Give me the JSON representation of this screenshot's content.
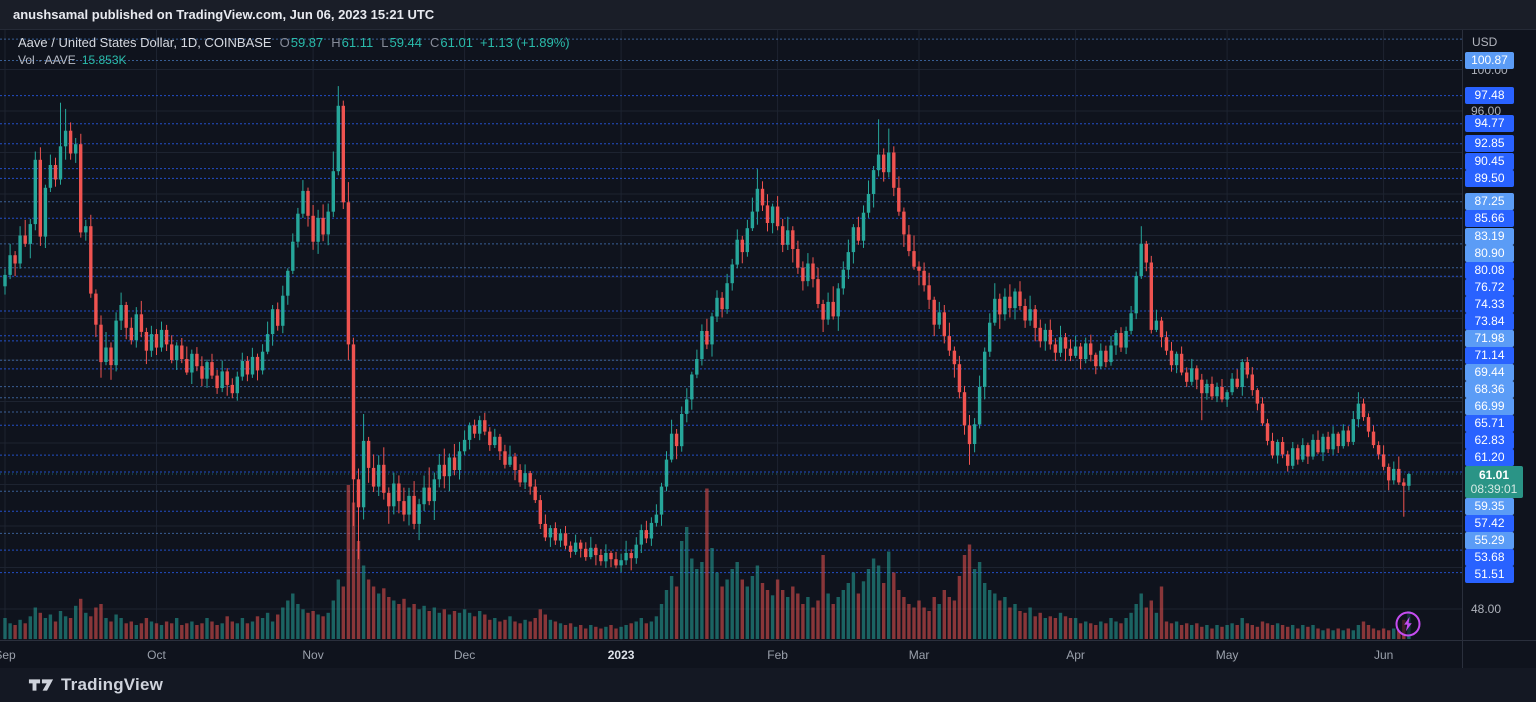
{
  "attribution": {
    "text": "anushsamal published on TradingView.com, Jun 06, 2023 15:21 UTC"
  },
  "legend": {
    "title": "Aave / United States Dollar, 1D, COINBASE",
    "o_label": "O",
    "o": "59.87",
    "h_label": "H",
    "h": "61.11",
    "l_label": "L",
    "l": "59.44",
    "c_label": "C",
    "c": "61.01",
    "change": "+1.13 (+1.89%)",
    "vol_label": "Vol · AAVE",
    "vol_value": "15.853K"
  },
  "axis": {
    "currency": "USD",
    "plain_labels": [
      {
        "price": 100.0,
        "label": "100.00"
      },
      {
        "price": 96.0,
        "label": "96.00"
      },
      {
        "price": 48.0,
        "label": "48.00"
      }
    ],
    "levels": [
      {
        "price": 102.93,
        "label": "",
        "tone": "light"
      },
      {
        "price": 100.87,
        "label": "100.87",
        "tone": "light"
      },
      {
        "price": 97.48,
        "label": "97.48",
        "tone": "blue"
      },
      {
        "price": 94.77,
        "label": "94.77",
        "tone": "blue"
      },
      {
        "price": 92.85,
        "label": "92.85",
        "tone": "blue"
      },
      {
        "price": 90.45,
        "label": "90.45",
        "tone": "blue"
      },
      {
        "price": 89.5,
        "label": "89.50",
        "tone": "blue"
      },
      {
        "price": 87.25,
        "label": "87.25",
        "tone": "light"
      },
      {
        "price": 85.66,
        "label": "85.66",
        "tone": "blue"
      },
      {
        "price": 83.19,
        "label": "83.19",
        "tone": "light"
      },
      {
        "price": 80.9,
        "label": "80.90",
        "tone": "light"
      },
      {
        "price": 80.08,
        "label": "80.08",
        "tone": "blue"
      },
      {
        "price": 76.72,
        "label": "76.72",
        "tone": "blue"
      },
      {
        "price": 74.33,
        "label": "74.33",
        "tone": "blue"
      },
      {
        "price": 73.84,
        "label": "73.84",
        "tone": "blue"
      },
      {
        "price": 71.98,
        "label": "71.98",
        "tone": "light"
      },
      {
        "price": 71.14,
        "label": "71.14",
        "tone": "blue"
      },
      {
        "price": 69.44,
        "label": "69.44",
        "tone": "light"
      },
      {
        "price": 68.36,
        "label": "68.36",
        "tone": "light"
      },
      {
        "price": 66.99,
        "label": "66.99",
        "tone": "light"
      },
      {
        "price": 65.71,
        "label": "65.71",
        "tone": "blue"
      },
      {
        "price": 62.83,
        "label": "62.83",
        "tone": "blue"
      },
      {
        "price": 61.2,
        "label": "61.20",
        "tone": "blue"
      },
      {
        "price": 59.35,
        "label": "59.35",
        "tone": "light"
      },
      {
        "price": 57.42,
        "label": "57.42",
        "tone": "blue"
      },
      {
        "price": 55.29,
        "label": "55.29",
        "tone": "light"
      },
      {
        "price": 53.68,
        "label": "53.68",
        "tone": "blue"
      },
      {
        "price": 51.51,
        "label": "51.51",
        "tone": "blue"
      }
    ],
    "current": {
      "price": 61.01,
      "label": "61.01",
      "countdown": "08:39:01"
    }
  },
  "time_axis": {
    "labels": [
      {
        "label": "Sep",
        "index": 0,
        "bold": false
      },
      {
        "label": "Oct",
        "index": 30,
        "bold": false
      },
      {
        "label": "Nov",
        "index": 61,
        "bold": false
      },
      {
        "label": "Dec",
        "index": 91,
        "bold": false
      },
      {
        "label": "2023",
        "index": 122,
        "bold": true
      },
      {
        "label": "Feb",
        "index": 153,
        "bold": false
      },
      {
        "label": "Mar",
        "index": 181,
        "bold": false
      },
      {
        "label": "Apr",
        "index": 212,
        "bold": false
      },
      {
        "label": "May",
        "index": 242,
        "bold": false
      },
      {
        "label": "Jun",
        "index": 273,
        "bold": false
      }
    ]
  },
  "footer": {
    "brand": "TradingView"
  },
  "colors": {
    "up": "#26a69a",
    "down": "#ef5350",
    "volume_up": "rgba(38,166,154,0.55)",
    "volume_down": "rgba(239,83,80,0.55)",
    "badge_blue": "#2962ff",
    "badge_light": "#5b9cf6",
    "current_badge": "#2a9486",
    "alert_line": "#2962ff",
    "alert_line_light": "#5b9cf6",
    "grid": "#1d2330",
    "last_price_line": "#26a69a",
    "boost_icon": "#c44cf0"
  },
  "chart_data": {
    "type": "candlestick",
    "symbol": "AAVE/USD",
    "interval": "1D",
    "exchange": "COINBASE",
    "start_date": "2022-09-01",
    "end_date": "2023-06-06",
    "ylim": [
      45.2,
      104.0
    ],
    "price_gridlines": [
      48,
      52,
      56,
      60,
      64,
      68,
      72,
      76,
      80,
      84,
      88,
      92,
      96,
      100
    ],
    "month_starts": [
      0,
      30,
      61,
      91,
      122,
      153,
      181,
      212,
      242,
      273
    ],
    "open_rule": "previous_close",
    "first_open": 79.1,
    "closes": [
      80.2,
      82.1,
      81.3,
      84.0,
      83.2,
      85.1,
      91.3,
      83.9,
      88.6,
      90.8,
      89.4,
      92.6,
      94.1,
      91.9,
      92.8,
      84.3,
      84.9,
      78.4,
      75.4,
      71.8,
      73.2,
      71.5,
      75.8,
      77.3,
      75.1,
      73.9,
      76.4,
      74.7,
      72.9,
      74.5,
      73.2,
      74.9,
      73.5,
      72.0,
      73.4,
      72.1,
      70.8,
      72.6,
      71.4,
      70.2,
      71.8,
      70.5,
      69.3,
      70.9,
      69.6,
      68.8,
      70.4,
      71.9,
      70.6,
      72.3,
      71.0,
      72.8,
      74.5,
      76.9,
      75.3,
      78.2,
      80.6,
      83.4,
      86.1,
      88.3,
      85.9,
      83.4,
      85.7,
      84.1,
      86.3,
      90.2,
      96.5,
      87.2,
      73.5,
      60.5,
      57.8,
      64.2,
      61.6,
      59.8,
      61.9,
      59.2,
      57.9,
      60.1,
      58.4,
      57.1,
      58.9,
      56.2,
      58.1,
      59.7,
      58.4,
      60.5,
      61.9,
      60.8,
      62.6,
      61.4,
      63.2,
      64.3,
      65.7,
      64.9,
      66.2,
      65.1,
      63.8,
      64.6,
      63.2,
      61.9,
      62.7,
      61.4,
      60.2,
      61.1,
      59.8,
      58.5,
      56.2,
      54.9,
      55.8,
      54.6,
      55.3,
      54.1,
      53.5,
      54.4,
      53.8,
      53.0,
      53.9,
      53.2,
      52.6,
      53.4,
      52.8,
      52.2,
      52.7,
      53.4,
      52.9,
      54.2,
      55.6,
      54.8,
      56.3,
      57.1,
      59.8,
      62.4,
      64.9,
      63.7,
      66.8,
      68.2,
      70.6,
      72.1,
      74.8,
      73.5,
      76.2,
      78.0,
      76.9,
      79.4,
      81.2,
      83.6,
      82.4,
      84.7,
      86.3,
      88.5,
      86.9,
      85.2,
      86.8,
      84.9,
      83.1,
      84.5,
      82.7,
      80.9,
      79.6,
      81.3,
      79.8,
      77.4,
      75.9,
      77.6,
      76.2,
      78.9,
      80.7,
      82.4,
      84.8,
      83.5,
      86.2,
      88.0,
      90.3,
      91.8,
      90.1,
      92.0,
      88.6,
      86.3,
      84.1,
      82.5,
      81.0,
      80.6,
      79.2,
      77.8,
      75.4,
      76.6,
      74.3,
      72.9,
      71.6,
      68.9,
      65.7,
      63.9,
      65.8,
      69.4,
      72.8,
      75.6,
      77.9,
      76.4,
      78.1,
      77.0,
      78.6,
      77.2,
      75.8,
      76.9,
      75.1,
      73.8,
      74.9,
      73.5,
      72.7,
      74.2,
      73.1,
      72.4,
      73.3,
      72.1,
      73.6,
      72.5,
      71.4,
      72.9,
      71.8,
      73.4,
      74.6,
      73.2,
      74.8,
      76.5,
      80.1,
      83.2,
      81.4,
      74.9,
      75.8,
      74.2,
      72.9,
      71.5,
      72.6,
      70.8,
      69.9,
      71.2,
      70.1,
      68.8,
      69.7,
      68.5,
      69.4,
      68.2,
      68.9,
      70.2,
      69.4,
      71.8,
      70.6,
      69.1,
      67.8,
      65.9,
      64.2,
      62.8,
      64.1,
      62.9,
      61.8,
      63.5,
      62.4,
      63.8,
      62.7,
      64.3,
      63.1,
      64.6,
      63.4,
      64.9,
      63.7,
      65.2,
      64.1,
      66.3,
      67.8,
      66.5,
      65.1,
      63.8,
      62.9,
      61.7,
      60.4,
      61.5,
      60.2,
      59.87,
      61.01
    ],
    "volumes_k": [
      12,
      9,
      8,
      11,
      9,
      13,
      18,
      15,
      12,
      14,
      10,
      16,
      13,
      12,
      19,
      23,
      15,
      13,
      18,
      20,
      12,
      10,
      14,
      12,
      9,
      10,
      8,
      9,
      12,
      10,
      9,
      8,
      10,
      9,
      12,
      8,
      9,
      10,
      8,
      9,
      12,
      10,
      8,
      9,
      13,
      10,
      9,
      12,
      9,
      10,
      13,
      12,
      15,
      10,
      14,
      18,
      22,
      26,
      20,
      17,
      15,
      16,
      14,
      13,
      15,
      22,
      34,
      30,
      88,
      78,
      56,
      42,
      34,
      30,
      26,
      29,
      24,
      22,
      20,
      23,
      18,
      20,
      17,
      19,
      16,
      18,
      15,
      17,
      14,
      16,
      15,
      17,
      15,
      13,
      16,
      14,
      11,
      12,
      10,
      11,
      13,
      10,
      9,
      11,
      10,
      12,
      17,
      14,
      11,
      10,
      9,
      8,
      9,
      7,
      8,
      6,
      8,
      7,
      6,
      7,
      8,
      6,
      7,
      8,
      9,
      10,
      12,
      9,
      10,
      13,
      20,
      28,
      36,
      30,
      56,
      64,
      46,
      40,
      44,
      86,
      52,
      38,
      30,
      34,
      40,
      44,
      34,
      30,
      36,
      42,
      32,
      28,
      25,
      34,
      28,
      24,
      30,
      26,
      20,
      24,
      18,
      22,
      48,
      26,
      20,
      24,
      28,
      32,
      38,
      26,
      33,
      40,
      46,
      42,
      32,
      50,
      38,
      28,
      24,
      20,
      18,
      22,
      18,
      16,
      24,
      20,
      28,
      24,
      22,
      36,
      48,
      54,
      40,
      44,
      32,
      28,
      26,
      22,
      24,
      18,
      20,
      16,
      15,
      18,
      13,
      15,
      12,
      13,
      12,
      15,
      13,
      12,
      12,
      9,
      10,
      9,
      8,
      10,
      9,
      12,
      10,
      9,
      12,
      15,
      20,
      26,
      18,
      22,
      15,
      30,
      10,
      9,
      10,
      8,
      9,
      8,
      9,
      7,
      8,
      6,
      8,
      7,
      8,
      9,
      8,
      12,
      9,
      8,
      7,
      10,
      9,
      8,
      9,
      8,
      7,
      8,
      6,
      8,
      7,
      8,
      6,
      5,
      6,
      5,
      6,
      5,
      6,
      5,
      8,
      10,
      8,
      6,
      5,
      6,
      5,
      6,
      5,
      11,
      15.853
    ],
    "wick_up_pattern": [
      0.6,
      1.1,
      0.4,
      0.9,
      1.5,
      0.5,
      0.8,
      1.2,
      0.3,
      1.0,
      0.7,
      1.3,
      0.4,
      0.8,
      0.6,
      1.0
    ],
    "wick_dn_pattern": [
      0.8,
      0.4,
      1.2,
      0.5,
      0.3,
      1.4,
      0.6,
      0.9,
      1.1,
      0.4,
      0.7,
      0.5,
      1.3,
      0.6,
      0.9,
      0.5
    ],
    "month_volatility": [
      1.0,
      0.8,
      1.3,
      0.7,
      0.9,
      1.0,
      1.0,
      0.7,
      0.6,
      0.8
    ],
    "overrides": {
      "11": {
        "h": 96.8
      },
      "12": {
        "h": 96.2
      },
      "19": {
        "l": 70.3
      },
      "65": {
        "h": 92.1
      },
      "66": {
        "h": 98.4,
        "l": 89.8
      },
      "67": {
        "h": 97.0
      },
      "68": {
        "l": 72.0
      },
      "69": {
        "l": 56.0
      },
      "70": {
        "l": 52.8
      },
      "71": {
        "h": 66.8
      },
      "149": {
        "h": 90.4
      },
      "173": {
        "h": 95.2
      },
      "175": {
        "h": 94.3
      },
      "191": {
        "l": 61.9
      },
      "225": {
        "h": 84.9
      },
      "237": {
        "l": 66.2
      },
      "268": {
        "h": 68.9
      },
      "277": {
        "l": 56.9
      },
      "278": {
        "o": 59.87,
        "h": 61.11,
        "l": 59.44,
        "c": 61.01
      }
    },
    "last": {
      "open": 59.87,
      "high": 61.11,
      "low": 59.44,
      "close": 61.01,
      "change": "+1.13",
      "change_pct": "+1.89%",
      "volume": "15.853K",
      "countdown": "08:39:01"
    }
  }
}
